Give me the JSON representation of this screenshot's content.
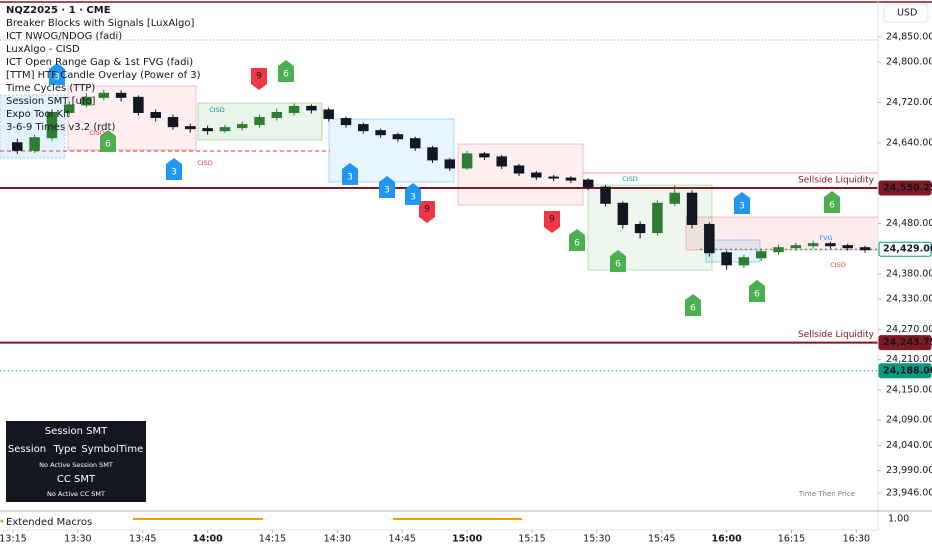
{
  "chart_data": {
    "type": "candlestick",
    "title": "NQZ2025 · 1 · CME",
    "indicators": [
      "Breaker Blocks with Signals [LuxAlgo]",
      "ICT NWOG/NDOG (fadi)",
      "LuxAlgo - CISD",
      "ICT Open Range Gap & 1st FVG (fadi)",
      "[TTM] HTF Candle Overlay (Power of 3)",
      "Time Cycles (TTP)",
      "Session SMT [ufo]",
      "Expo Tool Kit",
      "3-6-9 Times v3.2 (rdt)"
    ],
    "currency": "USD",
    "up_color": "#2e7d32",
    "down_color": "#131722",
    "grid": false,
    "xlim": [
      "13:12",
      "16:35"
    ],
    "xticks": [
      "13:15",
      "13:30",
      "13:45",
      "14:00",
      "14:15",
      "14:30",
      "14:45",
      "15:00",
      "15:15",
      "15:30",
      "15:45",
      "16:00",
      "16:15",
      "16:30"
    ],
    "ylim": [
      23912,
      24923
    ],
    "yticks": [
      {
        "value": 24850,
        "label": "24,850.00"
      },
      {
        "value": 24800,
        "label": "24,800.00"
      },
      {
        "value": 24720,
        "label": "24,720.00"
      },
      {
        "value": 24640,
        "label": "24,640.00"
      },
      {
        "value": 24480,
        "label": "24,480.00"
      },
      {
        "value": 24380,
        "label": "24,380.00"
      },
      {
        "value": 24330,
        "label": "24,330.00"
      },
      {
        "value": 24270,
        "label": "24,270.00"
      },
      {
        "value": 24210,
        "label": "24,210.00"
      },
      {
        "value": 24150,
        "label": "24,150.00"
      },
      {
        "value": 24090,
        "label": "24,090.00"
      },
      {
        "value": 24040,
        "label": "24,040.00"
      },
      {
        "value": 23990,
        "label": "23,990.00"
      },
      {
        "value": 23946,
        "label": "23,946.00"
      }
    ],
    "x": [
      "13:16",
      "13:20",
      "13:24",
      "13:28",
      "13:32",
      "13:36",
      "13:40",
      "13:44",
      "13:48",
      "13:52",
      "13:56",
      "14:00",
      "14:04",
      "14:08",
      "14:12",
      "14:16",
      "14:20",
      "14:24",
      "14:28",
      "14:32",
      "14:36",
      "14:40",
      "14:44",
      "14:48",
      "14:52",
      "14:56",
      "15:00",
      "15:04",
      "15:08",
      "15:12",
      "15:16",
      "15:20",
      "15:24",
      "15:28",
      "15:32",
      "15:36",
      "15:40",
      "15:44",
      "15:48",
      "15:52",
      "15:56",
      "16:00",
      "16:04",
      "16:08",
      "16:12",
      "16:16",
      "16:20",
      "16:24",
      "16:28",
      "16:32"
    ],
    "open": [
      24640,
      24625,
      24650,
      24700,
      24715,
      24730,
      24738,
      24730,
      24700,
      24690,
      24672,
      24668,
      24664,
      24670,
      24676,
      24690,
      24700,
      24712,
      24705,
      24688,
      24676,
      24664,
      24656,
      24648,
      24630,
      24606,
      24590,
      24618,
      24612,
      24594,
      24580,
      24572,
      24570,
      24566,
      24552,
      24520,
      24478,
      24462,
      24520,
      24540,
      24478,
      24422,
      24398,
      24412,
      24424,
      24432,
      24436,
      24440,
      24436,
      24432
    ],
    "high": [
      24648,
      24656,
      24706,
      24722,
      24738,
      24745,
      24744,
      24734,
      24706,
      24696,
      24678,
      24674,
      24676,
      24682,
      24696,
      24708,
      24718,
      24716,
      24710,
      24692,
      24680,
      24668,
      24660,
      24652,
      24634,
      24610,
      24624,
      24622,
      24616,
      24598,
      24584,
      24576,
      24574,
      24570,
      24556,
      24524,
      24484,
      24526,
      24556,
      24546,
      24482,
      24426,
      24418,
      24430,
      24438,
      24442,
      24446,
      24444,
      24440,
      24436
    ],
    "low": [
      24618,
      24620,
      24644,
      24694,
      24710,
      24724,
      24722,
      24694,
      24682,
      24666,
      24660,
      24656,
      24660,
      24664,
      24670,
      24684,
      24694,
      24698,
      24682,
      24670,
      24658,
      24650,
      24642,
      24624,
      24600,
      24584,
      24586,
      24606,
      24588,
      24574,
      24566,
      24564,
      24560,
      24546,
      24514,
      24470,
      24450,
      24456,
      24514,
      24470,
      24414,
      24388,
      24392,
      24406,
      24418,
      24426,
      24430,
      24430,
      24426,
      24422
    ],
    "close": [
      24625,
      24650,
      24700,
      24715,
      24730,
      24738,
      24730,
      24700,
      24690,
      24672,
      24668,
      24664,
      24670,
      24676,
      24690,
      24700,
      24712,
      24705,
      24688,
      24676,
      24664,
      24656,
      24648,
      24630,
      24606,
      24590,
      24618,
      24612,
      24594,
      24580,
      24572,
      24570,
      24566,
      24552,
      24520,
      24478,
      24462,
      24520,
      24540,
      24478,
      24422,
      24398,
      24412,
      24424,
      24432,
      24436,
      24440,
      24436,
      24432,
      24428
    ],
    "price_levels": [
      {
        "value": 24550.25,
        "label": "24,550.25",
        "color": "#801922",
        "style": "solid",
        "note": "Sellside Liquidity"
      },
      {
        "value": 24429,
        "label": "24,429.00",
        "color": "#089981",
        "style": "outline"
      },
      {
        "value": 24243.75,
        "label": "24,243.75",
        "color": "#801922",
        "style": "solid",
        "note": "Sellside Liquidity"
      },
      {
        "value": 24188,
        "label": "24,188.00",
        "color": "#089981",
        "style": "dotted"
      }
    ],
    "signals": [
      {
        "label": "3",
        "color": "#2196f3"
      },
      {
        "label": "9",
        "color": "#f23645"
      },
      {
        "label": "6",
        "color": "#4caf50"
      },
      {
        "label": "6",
        "color": "#4caf50"
      },
      {
        "label": "3",
        "color": "#2196f3"
      },
      {
        "label": "3",
        "color": "#2196f3"
      },
      {
        "label": "3",
        "color": "#2196f3"
      },
      {
        "label": "9",
        "color": "#f23645"
      },
      {
        "label": "3",
        "color": "#2196f3"
      },
      {
        "label": "9",
        "color": "#f23645"
      },
      {
        "label": "6",
        "color": "#4caf50"
      },
      {
        "label": "6",
        "color": "#4caf50"
      },
      {
        "label": "6",
        "color": "#4caf50"
      },
      {
        "label": "6",
        "color": "#4caf50"
      },
      {
        "label": "3",
        "color": "#2196f3"
      },
      {
        "label": "6",
        "color": "#4caf50"
      }
    ],
    "annotations": [
      "CISD",
      "CISD",
      "CISD",
      "CISD",
      "CISD",
      "FVG",
      "Time Then Price"
    ],
    "smt_table": {
      "title": "Session SMT",
      "header": [
        "Session",
        "Type",
        "Symbol",
        "Time"
      ],
      "session_note": "No Active Session SMT",
      "cc_title": "CC SMT",
      "cc_note": "No Active CC SMT"
    },
    "lower_pane": {
      "title": "Extended Macros",
      "axis_label": "1.00"
    }
  }
}
